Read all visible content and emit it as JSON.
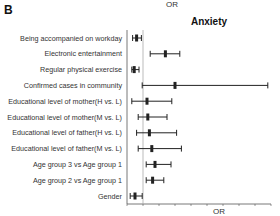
{
  "chart_data": {
    "type": "forest",
    "title": "Anxiety",
    "panel_label": "B",
    "annotations": [
      "OR"
    ],
    "x_label": "OR",
    "orientation": "horizontal",
    "categories": [
      "Being accompanied on workday",
      "Electronic entertainment",
      "Regular physical exercise",
      "Confirmed cases in community",
      "Educational level of mother(H vs. L)",
      "Educational level of mother(M vs. L)",
      "Educational level of father(H vs. L)",
      "Educational level of father(M vs. L)",
      "Age group 3 vs Age group 1",
      "Age group 2 vs Age group 1",
      "Gender"
    ],
    "values": [
      0.6,
      2.4,
      0.45,
      3.0,
      1.25,
      1.3,
      1.4,
      1.55,
      1.75,
      1.6,
      0.5
    ],
    "ci_low": [
      0.35,
      1.45,
      0.3,
      0.95,
      0.3,
      0.7,
      0.6,
      0.7,
      1.2,
      1.2,
      0.2
    ],
    "ci_high": [
      0.9,
      3.3,
      0.75,
      8.8,
      2.8,
      2.5,
      3.1,
      3.4,
      2.75,
      2.3,
      0.95
    ],
    "reference_line": 1,
    "xlim": [
      0,
      9
    ],
    "xticks": [
      0,
      1,
      2,
      3,
      4,
      5,
      6,
      7,
      8,
      9
    ],
    "tick_labels": false,
    "color": "#222222",
    "grid": false
  }
}
